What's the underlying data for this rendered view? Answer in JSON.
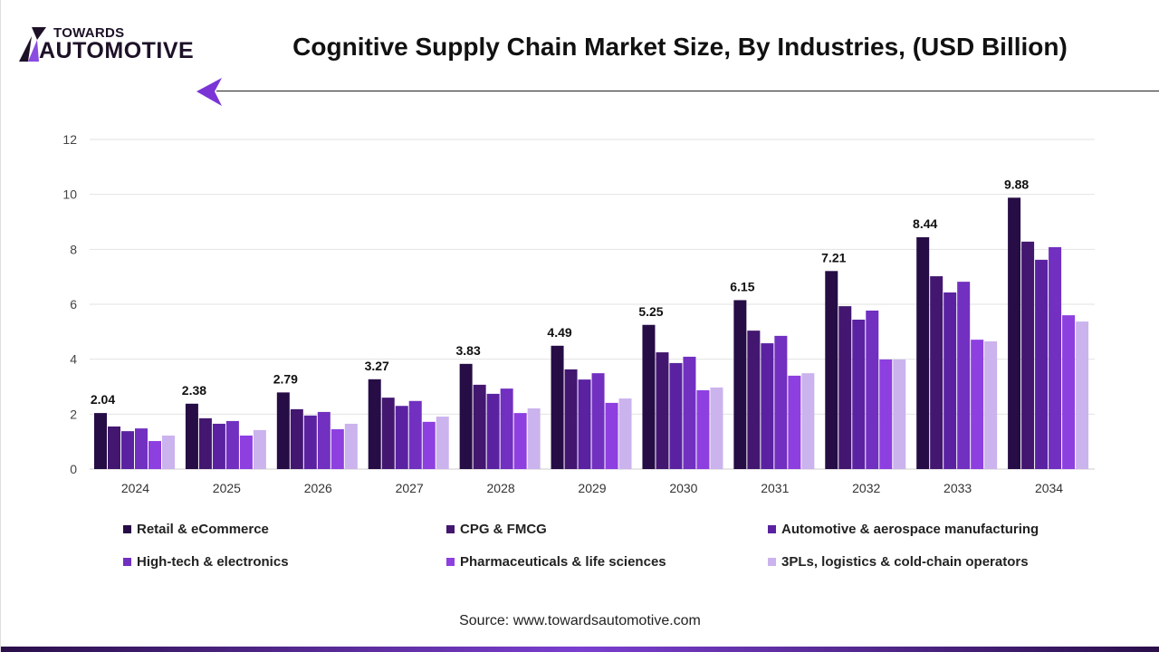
{
  "header": {
    "logo_top": "TOWARDS",
    "logo_bottom": "AUTOMOTIVE",
    "title": "Cognitive Supply Chain Market Size, By Industries, (USD Billion)"
  },
  "source": "Source: www.towardsautomotive.com",
  "chart_data": {
    "type": "bar",
    "title": "Cognitive Supply Chain Market Size, By Industries, (USD Billion)",
    "categories": [
      "2024",
      "2025",
      "2026",
      "2027",
      "2028",
      "2029",
      "2030",
      "2031",
      "2032",
      "2033",
      "2034"
    ],
    "ylim": [
      0,
      12
    ],
    "yticks": [
      "0",
      "2",
      "4",
      "6",
      "8",
      "10",
      "12"
    ],
    "grid": true,
    "legend_position": "bottom",
    "series": [
      {
        "name": "Retail & eCommerce",
        "color": "#260d45",
        "values": [
          2.04,
          2.38,
          2.79,
          3.27,
          3.83,
          4.49,
          5.25,
          6.15,
          7.21,
          8.44,
          9.88
        ],
        "labels": [
          "2.04",
          "2.38",
          "2.79",
          "3.27",
          "3.83",
          "4.49",
          "5.25",
          "6.15",
          "7.21",
          "8.44",
          "9.88"
        ]
      },
      {
        "name": "CPG & FMCG",
        "color": "#43176f",
        "values": [
          1.55,
          1.85,
          2.18,
          2.6,
          3.07,
          3.63,
          4.25,
          5.04,
          5.93,
          7.02,
          8.28
        ]
      },
      {
        "name": "Automotive & aerospace manufacturing",
        "color": "#5a22a0",
        "values": [
          1.38,
          1.65,
          1.95,
          2.3,
          2.74,
          3.26,
          3.86,
          4.58,
          5.44,
          6.43,
          7.62
        ]
      },
      {
        "name": "High-tech & electronics",
        "color": "#7230c0",
        "values": [
          1.48,
          1.75,
          2.08,
          2.48,
          2.93,
          3.49,
          4.09,
          4.85,
          5.77,
          6.82,
          8.08
        ]
      },
      {
        "name": "Pharmaceuticals & life sciences",
        "color": "#8e3fe0",
        "values": [
          1.02,
          1.22,
          1.45,
          1.72,
          2.04,
          2.41,
          2.87,
          3.4,
          3.99,
          4.71,
          5.6
        ]
      },
      {
        "name": "3PLs, logistics & cold-chain operators",
        "color": "#cbb3ee",
        "values": [
          1.22,
          1.42,
          1.65,
          1.91,
          2.21,
          2.57,
          2.97,
          3.49,
          3.99,
          4.65,
          5.37
        ]
      }
    ]
  }
}
